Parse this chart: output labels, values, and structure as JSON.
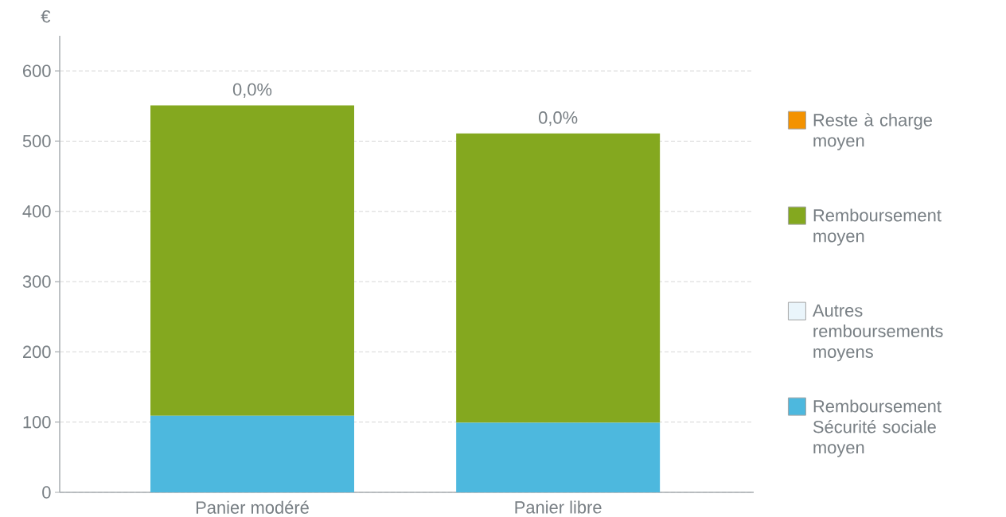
{
  "chart_data": {
    "type": "bar",
    "stacked": true,
    "ylabel": "€",
    "categories": [
      "Panier modéré",
      "Panier libre"
    ],
    "series": [
      {
        "name": "Remboursement Sécurité sociale moyen",
        "color": "#4db8de",
        "values": [
          109,
          99
        ]
      },
      {
        "name": "Autres remboursements moyens",
        "color": "#eaf5fb",
        "values": [
          0,
          0
        ]
      },
      {
        "name": "Remboursement moyen",
        "color": "#84a81f",
        "values": [
          442,
          412
        ]
      },
      {
        "name": "Reste à charge moyen",
        "color": "#f39200",
        "values": [
          0,
          0
        ],
        "value_labels": [
          "0,0%",
          "0,0%"
        ]
      }
    ],
    "ylim": [
      0,
      650
    ],
    "yticks": [
      0,
      100,
      200,
      300,
      400,
      500,
      600
    ],
    "grid": "y",
    "legend": "right"
  }
}
